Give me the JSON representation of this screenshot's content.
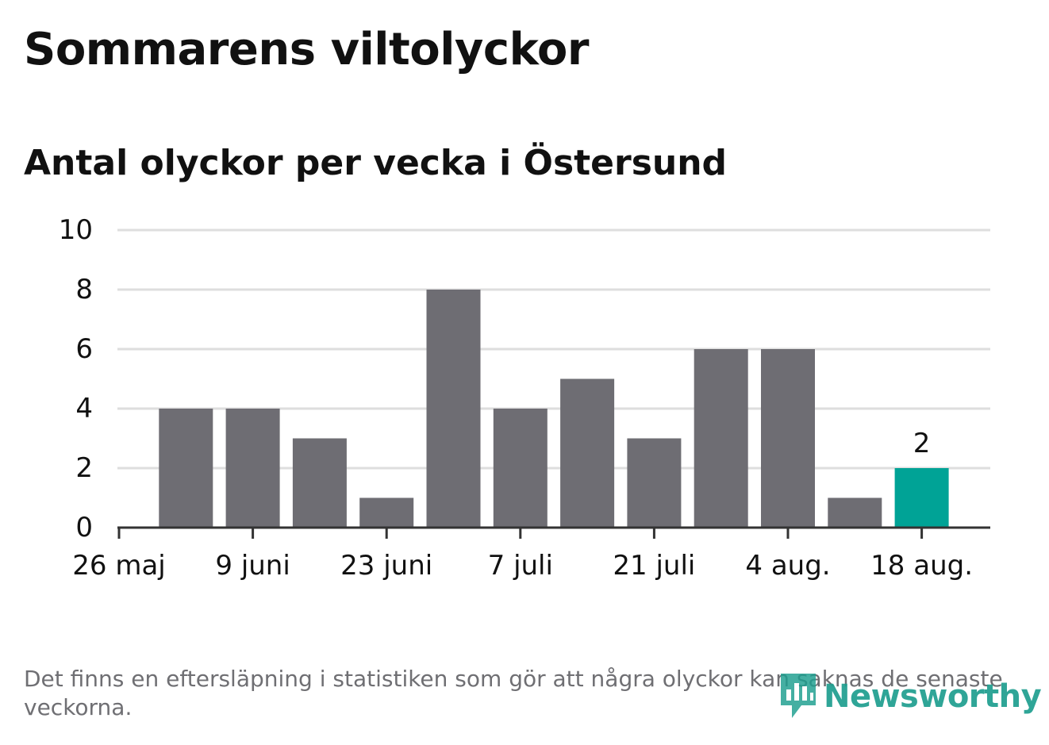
{
  "title": "Sommarens viltolyckor",
  "subtitle": "Antal olyckor per vecka i Östersund",
  "footnote": "Det finns en eftersläpning i statistiken som gör att några olyckor kan saknas de senaste veckorna.",
  "logo_text": "Newsworthy",
  "colors": {
    "bar": "#6e6d73",
    "highlight": "#00a396",
    "grid": "#dedede",
    "axis": "#333333",
    "text": "#111111",
    "muted": "#6f6f73",
    "logo": "#1e9e8f"
  },
  "chart_data": {
    "type": "bar",
    "categories": [
      "26 maj",
      "2 juni",
      "9 juni",
      "16 juni",
      "23 juni",
      "30 juni",
      "7 juli",
      "14 juli",
      "21 juli",
      "28 juli",
      "4 aug.",
      "11 aug.",
      "18 aug."
    ],
    "values": [
      0,
      4,
      4,
      3,
      1,
      8,
      4,
      5,
      3,
      6,
      6,
      1,
      2
    ],
    "highlight_index": 12,
    "data_labels": [
      {
        "index": 12,
        "text": "2"
      }
    ],
    "x_tick_labels": [
      "26 maj",
      "9 juni",
      "23 juni",
      "7 juli",
      "21 juli",
      "4 aug.",
      "18 aug."
    ],
    "x_tick_indices": [
      0,
      2,
      4,
      6,
      8,
      10,
      12
    ],
    "y_ticks": [
      0,
      2,
      4,
      6,
      8,
      10
    ],
    "ylim": [
      0,
      10
    ],
    "grid": true
  }
}
